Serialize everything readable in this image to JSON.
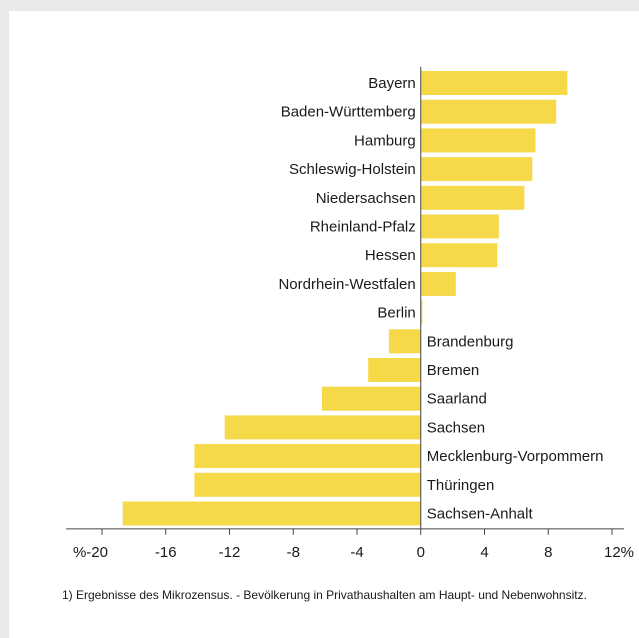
{
  "chart_data": {
    "type": "bar",
    "orientation": "horizontal",
    "categories": [
      "Bayern",
      "Baden-Württemberg",
      "Hamburg",
      "Schleswig-Holstein",
      "Niedersachsen",
      "Rheinland-Pfalz",
      "Hessen",
      "Nordrhein-Westfalen",
      "Berlin",
      "Brandenburg",
      "Bremen",
      "Saarland",
      "Sachsen",
      "Mecklenburg-Vorpommern",
      "Thüringen",
      "Sachsen-Anhalt"
    ],
    "values": [
      9.2,
      8.5,
      7.2,
      7.0,
      6.5,
      4.9,
      4.8,
      2.2,
      0.1,
      -2.0,
      -3.3,
      -6.2,
      -12.3,
      -14.2,
      -14.2,
      -18.7
    ],
    "xlim": [
      -20,
      12
    ],
    "xticks": [
      -20,
      -16,
      -12,
      -8,
      -4,
      0,
      4,
      8,
      12
    ],
    "xtick_labels": [
      "%-20",
      "-16",
      "-12",
      "-8",
      "-4",
      "0",
      "4",
      "8",
      "12%"
    ],
    "bar_color": "#f5d949",
    "axis_color": "#444444"
  },
  "footnote": "1) Ergebnisse des Mikrozensus. - Bevölkerung in Privathaushalten am Haupt- und Nebenwohnsitz."
}
